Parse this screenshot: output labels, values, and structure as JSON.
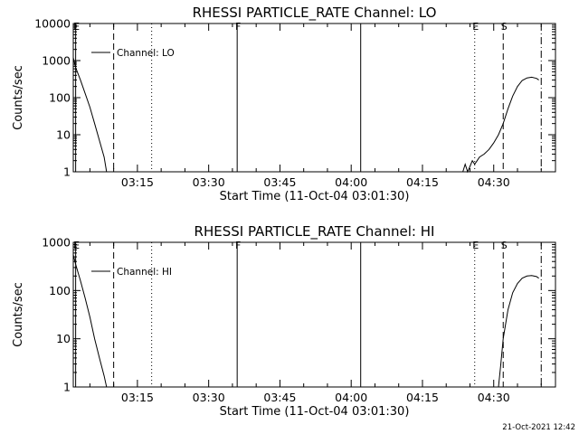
{
  "chart_data": [
    {
      "type": "line",
      "title": "RHESSI PARTICLE_RATE Channel: LO",
      "xlabel": "Start Time (11-Oct-04 03:01:30)",
      "ylabel": "Counts/sec",
      "y_scale": "log",
      "ylim": [
        1,
        10000
      ],
      "y_ticks": [
        "1",
        "10",
        "100",
        "1000",
        "10000"
      ],
      "x_range": [
        "03:01:30",
        "04:43:00"
      ],
      "x_ticks": [
        "03:15",
        "03:30",
        "03:45",
        "04:00",
        "04:15",
        "04:30"
      ],
      "legend": {
        "label": "Channel: LO",
        "position": "top-left"
      },
      "markers": [
        {
          "time": "03:02",
          "label": "E",
          "style": "solid"
        },
        {
          "time": "03:10",
          "label": "",
          "style": "dashed"
        },
        {
          "time": "03:18",
          "label": "",
          "style": "dotted"
        },
        {
          "time": "03:36",
          "label": "F",
          "style": "solid"
        },
        {
          "time": "04:02",
          "label": "",
          "style": "solid"
        },
        {
          "time": "04:26",
          "label": "E",
          "style": "dotted"
        },
        {
          "time": "04:32",
          "label": "S",
          "style": "dashed"
        },
        {
          "time": "04:40",
          "label": "",
          "style": "dashdot"
        }
      ],
      "series": [
        {
          "segments": [
            {
              "x": [
                "03:01:30",
                "03:02",
                "03:03",
                "03:04",
                "03:05",
                "03:06",
                "03:07",
                "03:08",
                "03:08:30"
              ],
              "y": [
                1200,
                650,
                300,
                130,
                55,
                20,
                7,
                2.5,
                1
              ]
            },
            {
              "x": [
                "04:23:30",
                "04:24",
                "04:24:30",
                "04:25",
                "04:25:30",
                "04:26",
                "04:26:30",
                "04:27",
                "04:28",
                "04:29",
                "04:30",
                "04:31",
                "04:32",
                "04:33",
                "04:34",
                "04:35",
                "04:36",
                "04:37",
                "04:38",
                "04:39",
                "04:39:30"
              ],
              "y": [
                1,
                1.6,
                1,
                1.4,
                2,
                1.6,
                2,
                2.5,
                3,
                4,
                6,
                10,
                20,
                50,
                110,
                200,
                290,
                340,
                355,
                330,
                300
              ]
            }
          ]
        }
      ]
    },
    {
      "type": "line",
      "title": "RHESSI PARTICLE_RATE Channel: HI",
      "xlabel": "Start Time (11-Oct-04 03:01:30)",
      "ylabel": "Counts/sec",
      "y_scale": "log",
      "ylim": [
        1,
        1000
      ],
      "y_ticks": [
        "1",
        "10",
        "100",
        "1000"
      ],
      "x_range": [
        "03:01:30",
        "04:43:00"
      ],
      "x_ticks": [
        "03:15",
        "03:30",
        "03:45",
        "04:00",
        "04:15",
        "04:30"
      ],
      "legend": {
        "label": "Channel: HI",
        "position": "top-left"
      },
      "markers": [
        {
          "time": "03:02",
          "label": "E",
          "style": "solid"
        },
        {
          "time": "03:10",
          "label": "",
          "style": "dashed"
        },
        {
          "time": "03:18",
          "label": "",
          "style": "dotted"
        },
        {
          "time": "03:36",
          "label": "F",
          "style": "solid"
        },
        {
          "time": "04:02",
          "label": "",
          "style": "solid"
        },
        {
          "time": "04:26",
          "label": "E",
          "style": "dotted"
        },
        {
          "time": "04:32",
          "label": "S",
          "style": "dashed"
        },
        {
          "time": "04:40",
          "label": "",
          "style": "dashdot"
        }
      ],
      "series": [
        {
          "segments": [
            {
              "x": [
                "03:01:30",
                "03:02",
                "03:03",
                "03:04",
                "03:05",
                "03:06",
                "03:07",
                "03:08",
                "03:08:30"
              ],
              "y": [
                550,
                350,
                160,
                70,
                28,
                10,
                4,
                1.7,
                1
              ]
            },
            {
              "x": [
                "04:31",
                "04:31:30",
                "04:32",
                "04:33",
                "04:34",
                "04:35",
                "04:36",
                "04:37",
                "04:38",
                "04:39",
                "04:39:30"
              ],
              "y": [
                1,
                3,
                10,
                40,
                90,
                140,
                180,
                200,
                205,
                195,
                180
              ]
            }
          ]
        }
      ]
    }
  ],
  "timestamp": "21-Oct-2021 12:42"
}
